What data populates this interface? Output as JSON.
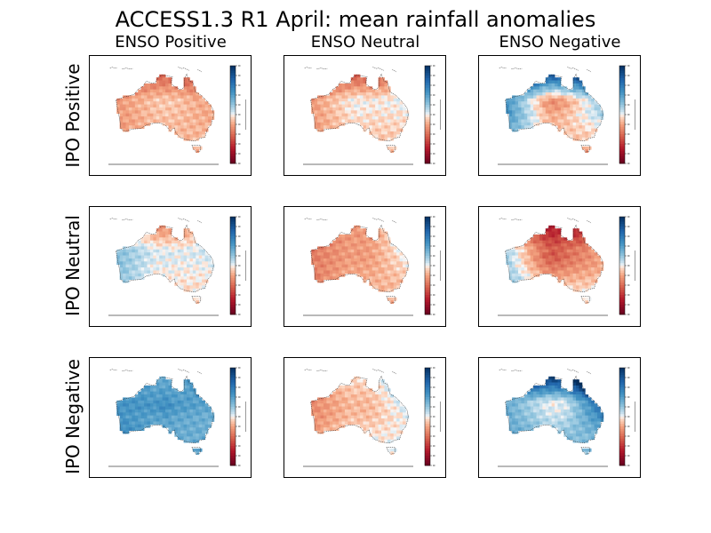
{
  "figure": {
    "title": "ACCESS1.3 R1 April: mean rainfall anomalies",
    "columns": [
      "ENSO Positive",
      "ENSO Neutral",
      "ENSO Negative"
    ],
    "rows": [
      "IPO Positive",
      "IPO Neutral",
      "IPO Negative"
    ]
  },
  "colormap": {
    "name": "RdBu",
    "negative": "#67001f",
    "neutral": "#f7f7f7",
    "positive": "#053061"
  },
  "chart_data": {
    "type": "heatmap",
    "title": "ACCESS1.3 R1 April: mean rainfall anomalies",
    "xlabel": "",
    "ylabel": "",
    "columns": [
      "ENSO Positive",
      "ENSO Neutral",
      "ENSO Negative"
    ],
    "rows": [
      "IPO Positive",
      "IPO Neutral",
      "IPO Negative"
    ],
    "colorbar_range": [
      -1,
      1
    ],
    "panels": [
      {
        "row": "IPO Positive",
        "col": "ENSO Positive",
        "pattern": {
          "base": -0.15,
          "north": -0.35,
          "east": -0.15,
          "west": -0.1,
          "south": 0.0,
          "centre": 0.05
        }
      },
      {
        "row": "IPO Positive",
        "col": "ENSO Neutral",
        "pattern": {
          "base": -0.1,
          "north": -0.45,
          "east": 0.2,
          "west": -0.15,
          "south": 0.0,
          "centre": 0.1
        }
      },
      {
        "row": "IPO Positive",
        "col": "ENSO Negative",
        "pattern": {
          "base": 0.05,
          "north": 0.9,
          "east": 0.3,
          "west": 0.45,
          "south": -0.2,
          "centre": -0.35
        }
      },
      {
        "row": "IPO Neutral",
        "col": "ENSO Positive",
        "pattern": {
          "base": -0.05,
          "north": -0.3,
          "east": 0.2,
          "west": 0.3,
          "south": 0.0,
          "centre": 0.1
        }
      },
      {
        "row": "IPO Neutral",
        "col": "ENSO Neutral",
        "pattern": {
          "base": -0.15,
          "north": -0.1,
          "east": 0.35,
          "west": -0.2,
          "south": 0.0,
          "centre": -0.1
        }
      },
      {
        "row": "IPO Neutral",
        "col": "ENSO Negative",
        "pattern": {
          "base": -0.15,
          "north": -0.6,
          "east": -0.1,
          "west": 0.35,
          "south": 0.1,
          "centre": -0.35
        }
      },
      {
        "row": "IPO Negative",
        "col": "ENSO Positive",
        "pattern": {
          "base": 0.2,
          "north": 0.1,
          "east": 0.3,
          "west": 0.25,
          "south": 0.15,
          "centre": 0.3
        }
      },
      {
        "row": "IPO Negative",
        "col": "ENSO Neutral",
        "pattern": {
          "base": -0.1,
          "north": 0.05,
          "east": 0.35,
          "west": -0.2,
          "south": 0.1,
          "centre": -0.05
        }
      },
      {
        "row": "IPO Negative",
        "col": "ENSO Negative",
        "pattern": {
          "base": 0.2,
          "north": 0.9,
          "east": 1.0,
          "west": 0.15,
          "south": 0.05,
          "centre": -0.2
        }
      }
    ]
  }
}
